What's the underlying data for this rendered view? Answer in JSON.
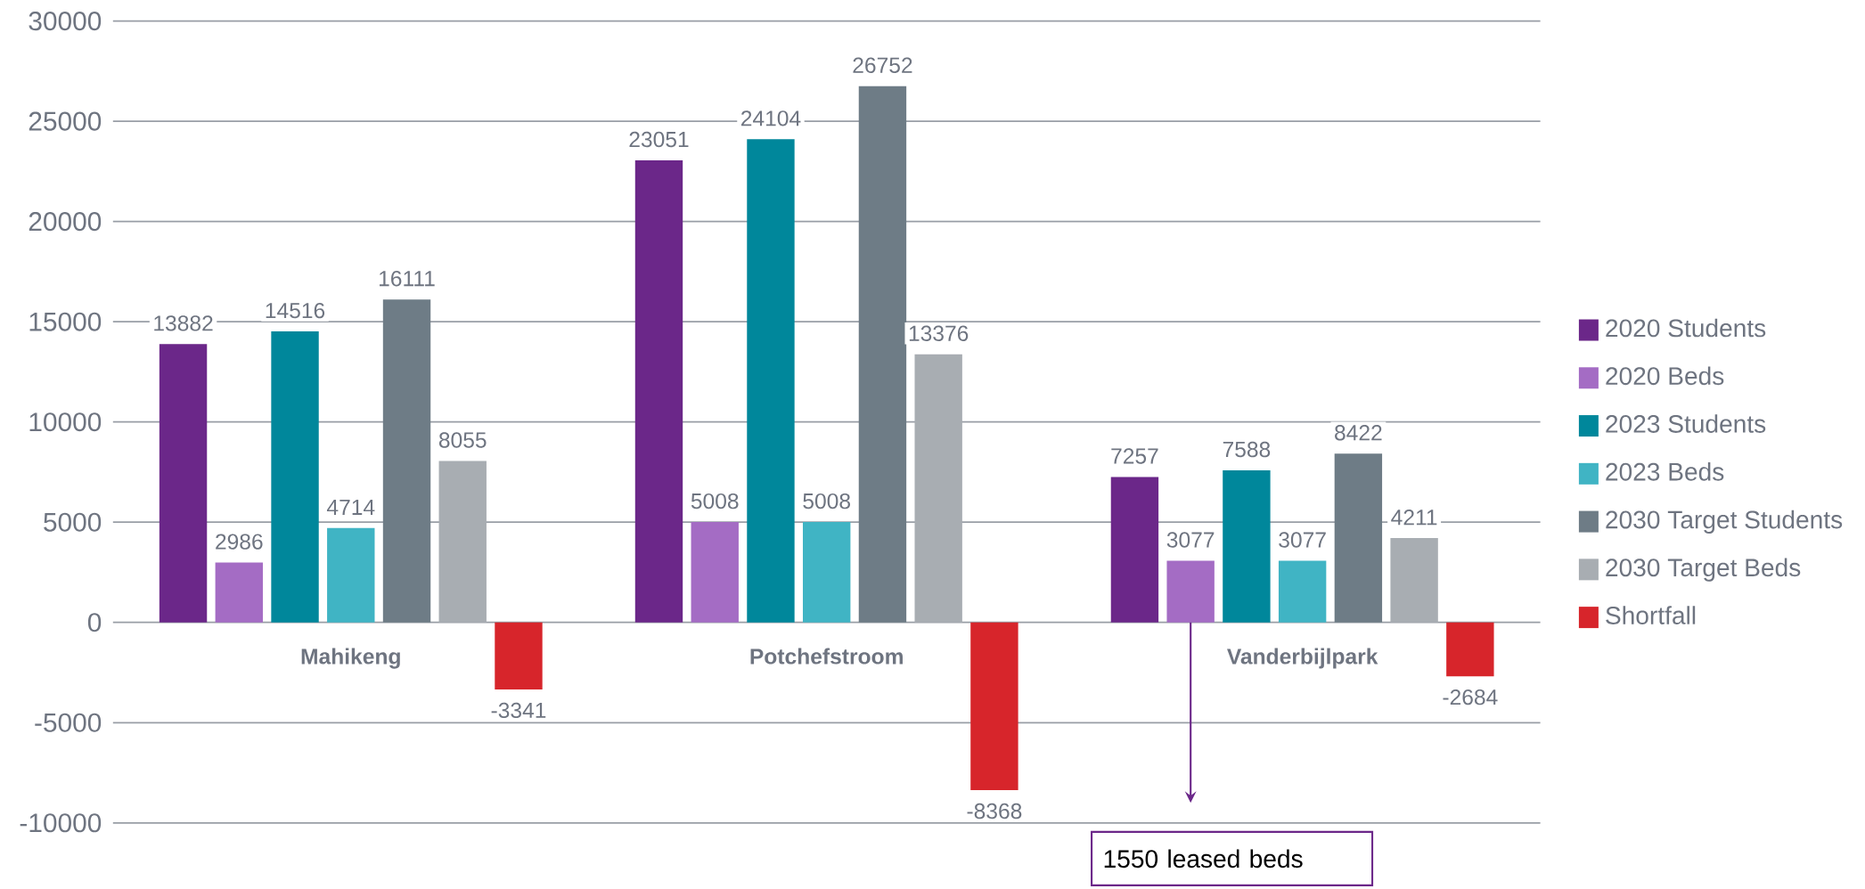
{
  "chart_data": {
    "type": "bar",
    "categories": [
      "Mahikeng",
      "Potchefstroom",
      "Vanderbijlpark"
    ],
    "series": [
      {
        "name": "2020 Students",
        "color": "#6b2789",
        "values": [
          13882,
          23051,
          7257
        ]
      },
      {
        "name": "2020 Beds",
        "color": "#a46cc4",
        "values": [
          2986,
          5008,
          3077
        ]
      },
      {
        "name": "2023 Students",
        "color": "#00879b",
        "values": [
          14516,
          24104,
          7588
        ]
      },
      {
        "name": "2023 Beds",
        "color": "#40b4c4",
        "values": [
          4714,
          5008,
          3077
        ]
      },
      {
        "name": "2030 Target Students",
        "color": "#6e7c86",
        "values": [
          16111,
          26752,
          8422
        ]
      },
      {
        "name": "2030 Target Beds",
        "color": "#a8adb2",
        "values": [
          8055,
          13376,
          4211
        ]
      },
      {
        "name": "Shortfall",
        "color": "#d7252b",
        "values": [
          -3341,
          -8368,
          -2684
        ]
      }
    ],
    "ylim": [
      -13000,
      30000
    ],
    "yticks": [
      -10000,
      -5000,
      0,
      5000,
      10000,
      15000,
      20000,
      25000,
      30000
    ],
    "grid": "y",
    "legend": "right",
    "data_labels": true,
    "annotations": [
      "1550 leased beds"
    ]
  }
}
